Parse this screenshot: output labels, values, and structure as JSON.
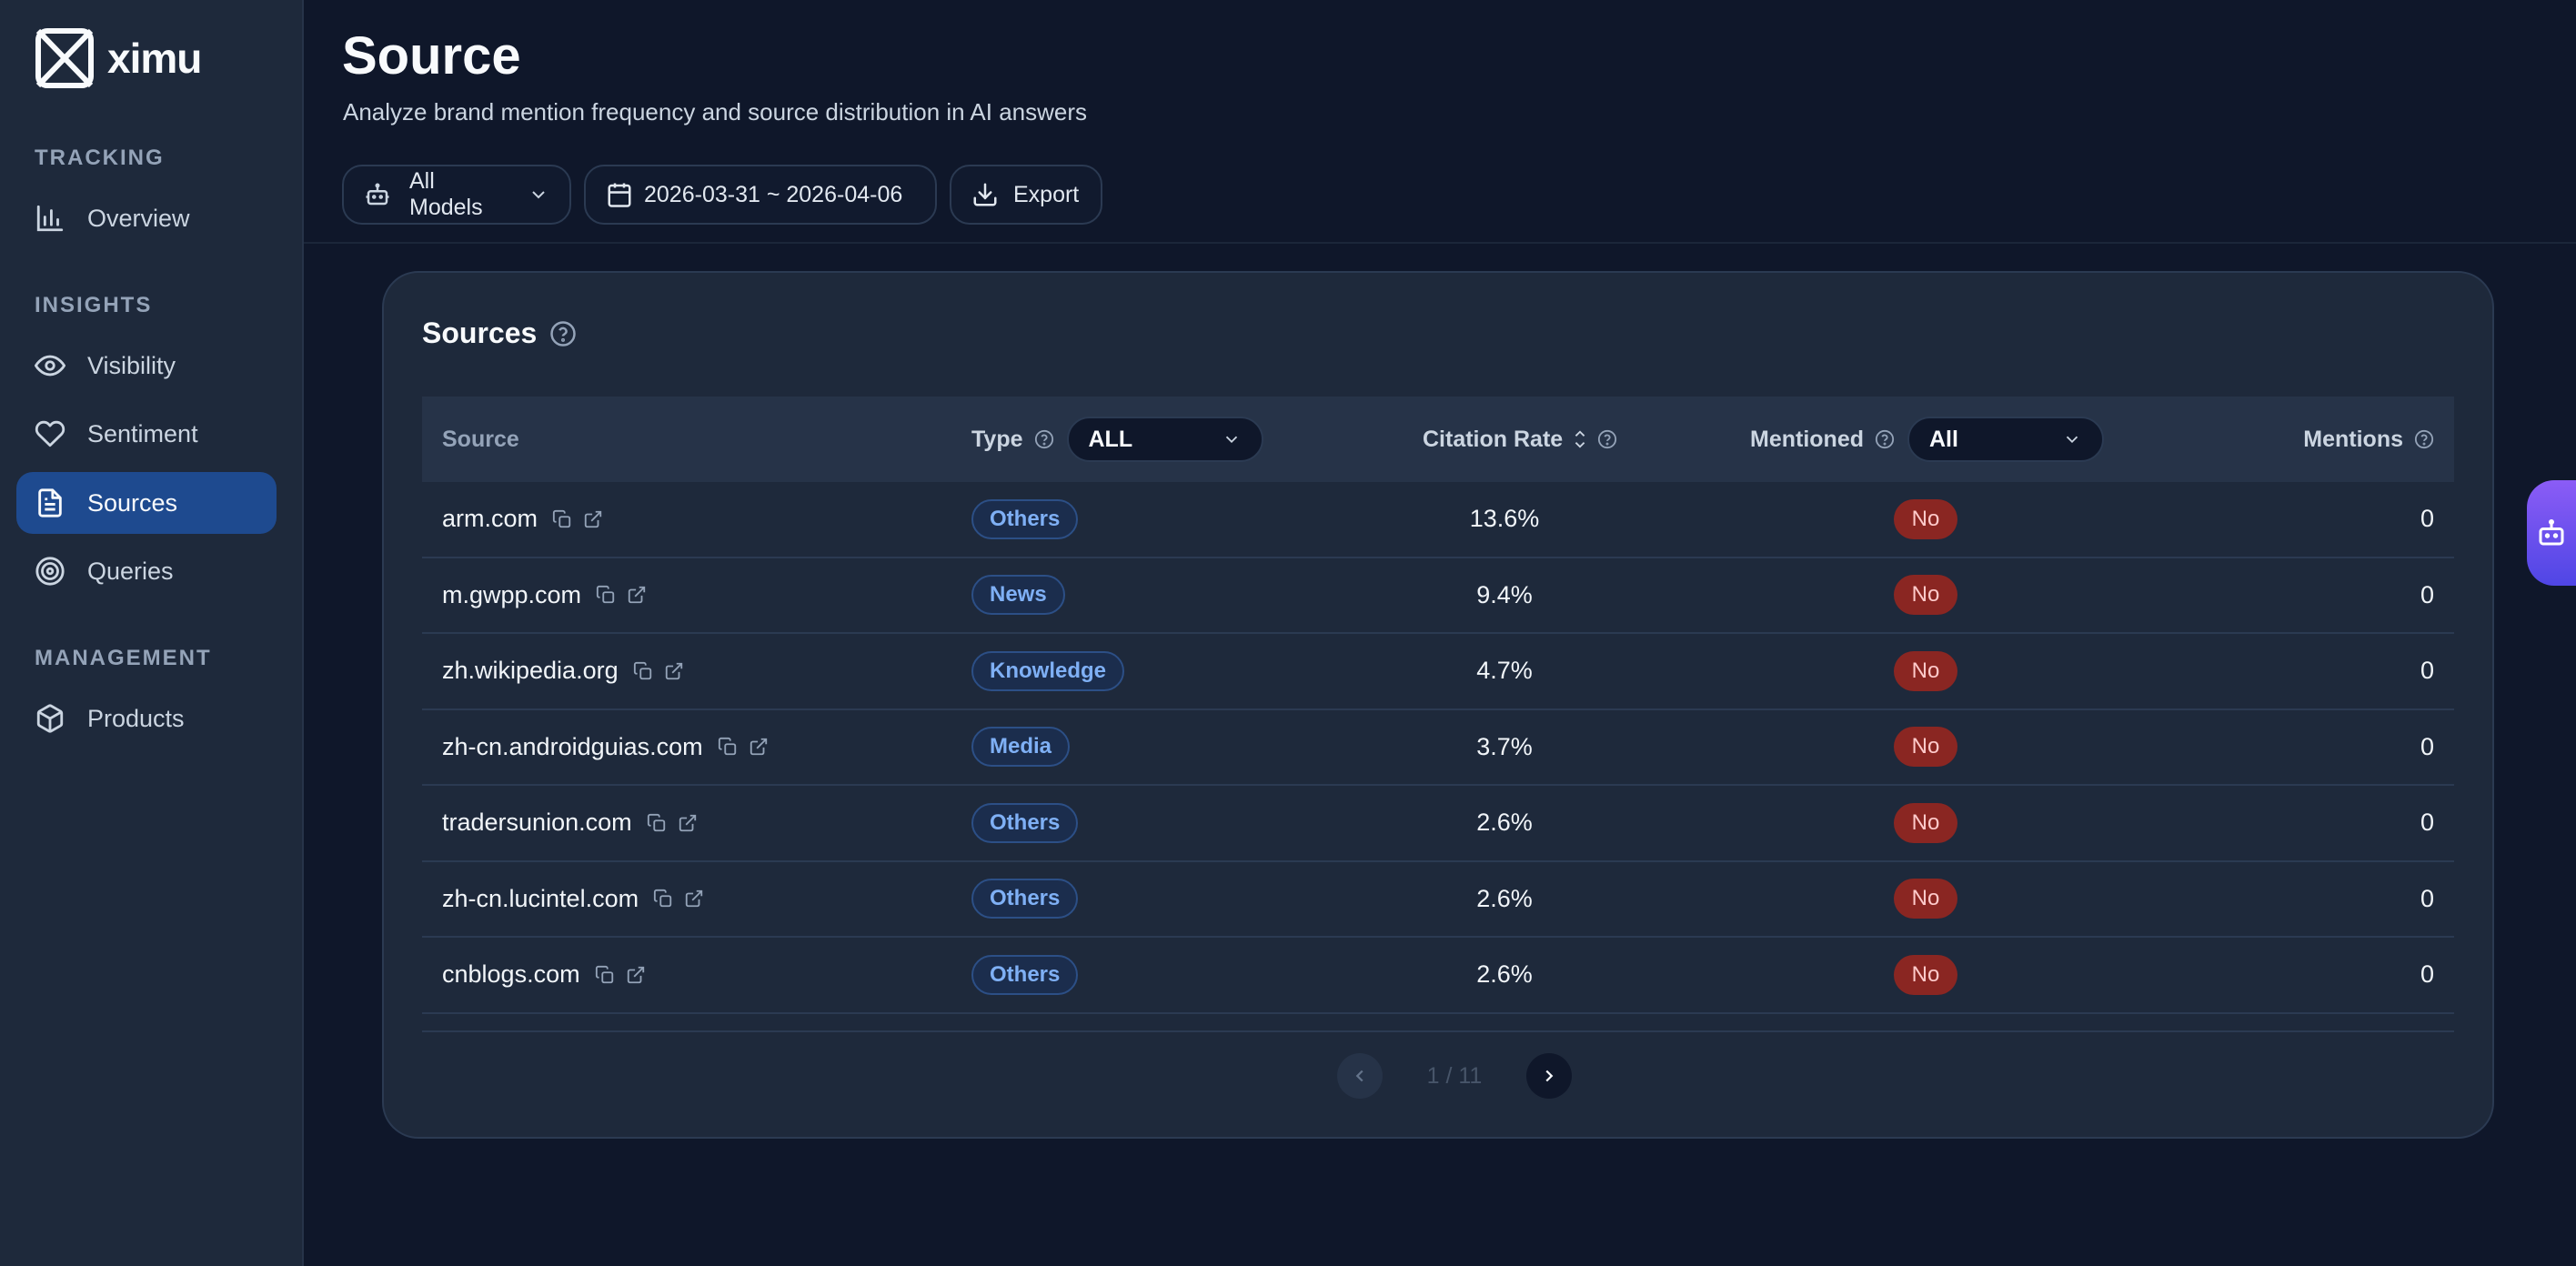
{
  "brand": {
    "name": "ximu"
  },
  "sidebar": {
    "sections": [
      {
        "title": "TRACKING",
        "items": [
          {
            "label": "Overview",
            "icon": "bar-chart-icon"
          }
        ]
      },
      {
        "title": "INSIGHTS",
        "items": [
          {
            "label": "Visibility",
            "icon": "eye-icon"
          },
          {
            "label": "Sentiment",
            "icon": "heart-icon"
          },
          {
            "label": "Sources",
            "icon": "document-icon",
            "active": true
          },
          {
            "label": "Queries",
            "icon": "target-icon"
          }
        ]
      },
      {
        "title": "MANAGEMENT",
        "items": [
          {
            "label": "Products",
            "icon": "box-icon"
          }
        ]
      }
    ]
  },
  "header": {
    "title": "Source",
    "subtitle": "Analyze brand mention frequency and source distribution in AI answers",
    "model_filter": "All Models",
    "date_range": "2026-03-31 ~ 2026-04-06",
    "export_label": "Export"
  },
  "card": {
    "title": "Sources",
    "columns": {
      "source": "Source",
      "type": "Type",
      "type_filter": "ALL",
      "citation_rate": "Citation Rate",
      "mentioned": "Mentioned",
      "mentioned_filter": "All",
      "mentions": "Mentions"
    },
    "rows": [
      {
        "source": "arm.com",
        "type": "Others",
        "citation_rate": "13.6%",
        "mentioned": "No",
        "mentions": "0"
      },
      {
        "source": "m.gwpp.com",
        "type": "News",
        "citation_rate": "9.4%",
        "mentioned": "No",
        "mentions": "0"
      },
      {
        "source": "zh.wikipedia.org",
        "type": "Knowledge",
        "citation_rate": "4.7%",
        "mentioned": "No",
        "mentions": "0"
      },
      {
        "source": "zh-cn.androidguias.com",
        "type": "Media",
        "citation_rate": "3.7%",
        "mentioned": "No",
        "mentions": "0"
      },
      {
        "source": "tradersunion.com",
        "type": "Others",
        "citation_rate": "2.6%",
        "mentioned": "No",
        "mentions": "0"
      },
      {
        "source": "zh-cn.lucintel.com",
        "type": "Others",
        "citation_rate": "2.6%",
        "mentioned": "No",
        "mentions": "0"
      },
      {
        "source": "cnblogs.com",
        "type": "Others",
        "citation_rate": "2.6%",
        "mentioned": "No",
        "mentions": "0"
      }
    ],
    "pagination": "1 / 11"
  },
  "colors": {
    "background": "#0f172a",
    "sidebar": "#1e293b",
    "active_nav": "#1e4a8f",
    "badge_type_text": "#7fb0f5",
    "badge_no": "#8a2622",
    "assistant_gradient_start": "#8b5cf6",
    "assistant_gradient_end": "#4f46e5"
  }
}
